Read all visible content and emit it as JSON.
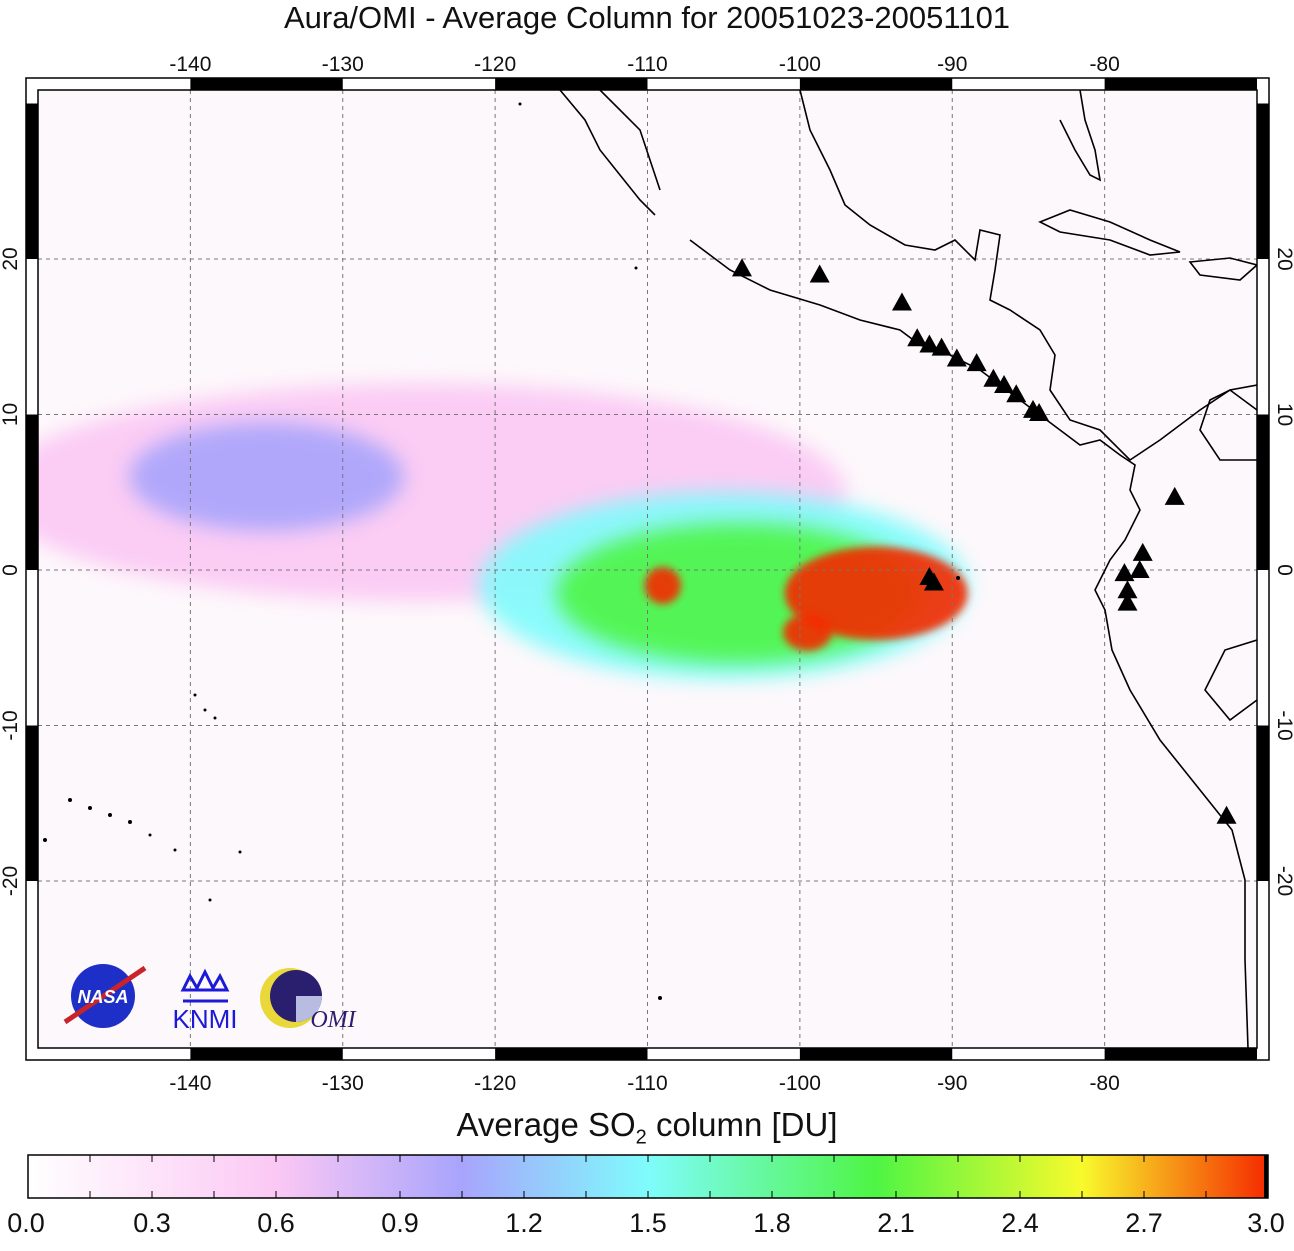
{
  "chart_data": {
    "type": "heatmap",
    "title": "Aura/OMI - Average Column for 20051023-20051101",
    "colorbar_title_prefix": "Average SO",
    "colorbar_title_sub": "2",
    "colorbar_title_suffix": " column [DU]",
    "xlim": [
      -150,
      -70
    ],
    "ylim": [
      -31,
      31
    ],
    "x_ticks": [
      "-140",
      "-130",
      "-120",
      "-110",
      "-100",
      "-90",
      "-80"
    ],
    "x_tick_values": [
      -140,
      -130,
      -120,
      -110,
      -100,
      -90,
      -80
    ],
    "y_ticks": [
      "20",
      "10",
      "0",
      "-10",
      "-20"
    ],
    "y_tick_values": [
      20,
      10,
      0,
      -10,
      -20
    ],
    "grid": true,
    "colorbar_range": [
      0.0,
      3.0
    ],
    "colorbar_ticks": [
      "0.0",
      "0.3",
      "0.6",
      "0.9",
      "1.2",
      "1.5",
      "1.8",
      "2.1",
      "2.4",
      "2.7",
      "3.0"
    ],
    "colorbar_stops": [
      {
        "value": 0.0,
        "color": "#ffffff"
      },
      {
        "value": 0.6,
        "color": "#fbc8f4"
      },
      {
        "value": 1.05,
        "color": "#a8a4fc"
      },
      {
        "value": 1.5,
        "color": "#7ffcfc"
      },
      {
        "value": 2.05,
        "color": "#4ef544"
      },
      {
        "value": 2.55,
        "color": "#f8fa2c"
      },
      {
        "value": 3.0,
        "color": "#f52a00"
      }
    ],
    "plume_features": [
      {
        "lon": -95,
        "lat": -1.5,
        "rx": 6,
        "ry": 3,
        "value": 3.0
      },
      {
        "lon": -99.5,
        "lat": -4,
        "rx": 1.6,
        "ry": 1.2,
        "value": 3.0
      },
      {
        "lon": -109,
        "lat": -1,
        "rx": 1.2,
        "ry": 1.2,
        "value": 3.0
      },
      {
        "lon": -104,
        "lat": -1.5,
        "rx": 12,
        "ry": 4.5,
        "value": 2.0
      },
      {
        "lon": -105,
        "lat": -1,
        "rx": 16,
        "ry": 6,
        "value": 1.3
      },
      {
        "lon": -135,
        "lat": 6,
        "rx": 9,
        "ry": 3.5,
        "value": 1.0
      },
      {
        "lon": -125,
        "lat": 5,
        "rx": 28,
        "ry": 7,
        "value": 0.6
      }
    ],
    "volcanoes": [
      {
        "lon": -103.8,
        "lat": 19.4
      },
      {
        "lon": -98.7,
        "lat": 19.0
      },
      {
        "lon": -93.3,
        "lat": 17.2
      },
      {
        "lon": -92.3,
        "lat": 14.9
      },
      {
        "lon": -91.5,
        "lat": 14.5
      },
      {
        "lon": -90.7,
        "lat": 14.3
      },
      {
        "lon": -89.7,
        "lat": 13.6
      },
      {
        "lon": -88.4,
        "lat": 13.3
      },
      {
        "lon": -87.3,
        "lat": 12.3
      },
      {
        "lon": -86.6,
        "lat": 11.9
      },
      {
        "lon": -85.8,
        "lat": 11.3
      },
      {
        "lon": -84.7,
        "lat": 10.3
      },
      {
        "lon": -84.3,
        "lat": 10.1
      },
      {
        "lon": -75.4,
        "lat": 4.7
      },
      {
        "lon": -77.5,
        "lat": 1.1
      },
      {
        "lon": -77.7,
        "lat": 0.0
      },
      {
        "lon": -78.7,
        "lat": -0.2
      },
      {
        "lon": -78.5,
        "lat": -1.3
      },
      {
        "lon": -78.5,
        "lat": -2.1
      },
      {
        "lon": -91.5,
        "lat": -0.45
      },
      {
        "lon": -91.2,
        "lat": -0.8
      },
      {
        "lon": -72.0,
        "lat": -15.8
      }
    ]
  },
  "logos": [
    "NASA",
    "KNMI",
    "OMI"
  ]
}
